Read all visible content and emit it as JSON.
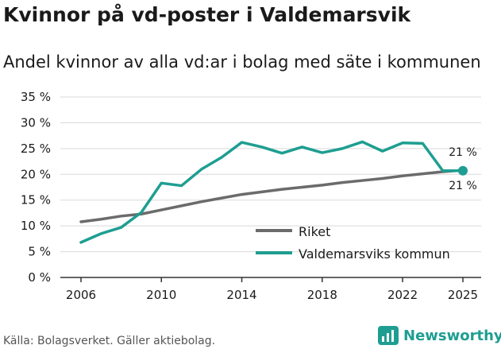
{
  "title": "Kvinnor på vd-poster i Valdemarsvik",
  "subtitle": "Andel kvinnor av alla vd:ar i bolag med säte i kommunen",
  "source": "Källa: Bolagsverket. Gäller aktiebolag.",
  "brand": "Newsworthy",
  "colors": {
    "riket": "#6b6b6b",
    "kommun": "#1e9e91",
    "grid": "#d9d9d9",
    "axis": "#333333"
  },
  "chart_data": {
    "type": "line",
    "ylim": [
      0,
      35
    ],
    "yticks": [
      0,
      5,
      10,
      15,
      20,
      25,
      30,
      35
    ],
    "ytick_labels": [
      "0 %",
      "5 %",
      "10 %",
      "15 %",
      "20 %",
      "25 %",
      "30 %",
      "35 %"
    ],
    "xlim": [
      2005,
      2026
    ],
    "xticks": [
      2006,
      2010,
      2014,
      2018,
      2022,
      2025
    ],
    "xtick_labels": [
      "2006",
      "2010",
      "2014",
      "2018",
      "2022",
      "2025"
    ],
    "x": [
      2006,
      2007,
      2008,
      2009,
      2010,
      2011,
      2012,
      2013,
      2014,
      2015,
      2016,
      2017,
      2018,
      2019,
      2020,
      2021,
      2022,
      2023,
      2024,
      2025
    ],
    "series": [
      {
        "name": "Riket",
        "color": "#6b6b6b",
        "values": [
          10.8,
          11.3,
          11.9,
          12.3,
          13.1,
          13.9,
          14.7,
          15.4,
          16.1,
          16.6,
          17.1,
          17.5,
          17.9,
          18.4,
          18.8,
          19.2,
          19.7,
          20.1,
          20.5,
          20.8
        ]
      },
      {
        "name": "Valdemarsviks kommun",
        "color": "#1e9e91",
        "values": [
          6.8,
          8.5,
          9.7,
          12.6,
          18.3,
          17.8,
          21.0,
          23.3,
          26.2,
          25.3,
          24.1,
          25.3,
          24.2,
          25.0,
          26.3,
          24.5,
          26.1,
          26.0,
          20.7,
          20.7
        ]
      }
    ],
    "end_labels": {
      "kommun": "21 %",
      "riket": "21 %"
    },
    "legend": [
      "Riket",
      "Valdemarsviks kommun"
    ],
    "legend_position": "bottom-right"
  }
}
